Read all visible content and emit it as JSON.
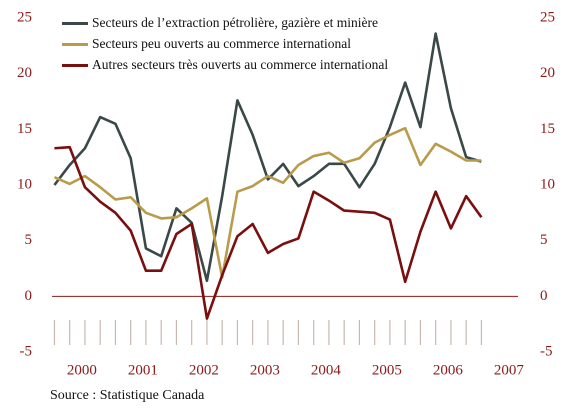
{
  "chart_data": {
    "type": "line",
    "x": [
      2000,
      2000.25,
      2000.5,
      2000.75,
      2001,
      2001.25,
      2001.5,
      2001.75,
      2002,
      2002.25,
      2002.5,
      2002.75,
      2003,
      2003.25,
      2003.5,
      2003.75,
      2004,
      2004.25,
      2004.5,
      2004.75,
      2005,
      2005.25,
      2005.5,
      2005.75,
      2006,
      2006.25,
      2006.5,
      2006.75,
      2007
    ],
    "series": [
      {
        "name": "Secteurs de l’extraction pétrolière, gazière et minière",
        "color": "#3b4848",
        "values": [
          10.0,
          11.8,
          13.3,
          16.1,
          15.5,
          12.4,
          4.3,
          3.6,
          7.9,
          6.6,
          1.4,
          9.0,
          17.6,
          14.5,
          10.5,
          11.9,
          9.9,
          10.8,
          11.9,
          11.9,
          9.8,
          11.9,
          15.2,
          19.2,
          15.2,
          23.6,
          16.9,
          12.5,
          12.1
        ]
      },
      {
        "name": "Secteurs peu ouverts au commerce international",
        "color": "#b89c4c",
        "values": [
          10.7,
          10.1,
          10.8,
          9.8,
          8.7,
          8.9,
          7.5,
          7.0,
          7.1,
          7.9,
          8.8,
          1.7,
          9.4,
          9.9,
          10.8,
          10.2,
          11.8,
          12.6,
          12.9,
          12.0,
          12.4,
          13.8,
          14.5,
          15.1,
          11.8,
          13.7,
          13.0,
          12.2,
          12.2
        ]
      },
      {
        "name": "Autres secteurs très ouverts au commerce international",
        "color": "#7a0f0f",
        "values": [
          13.3,
          13.4,
          9.8,
          8.5,
          7.5,
          5.9,
          2.3,
          2.3,
          5.6,
          6.5,
          -2.0,
          1.9,
          5.4,
          6.5,
          3.9,
          4.7,
          5.2,
          9.4,
          8.6,
          7.7,
          7.6,
          7.5,
          6.9,
          1.3,
          5.8,
          9.4,
          6.1,
          9.0,
          7.1
        ]
      }
    ],
    "xlim": [
      1999.96,
      2007.6
    ],
    "xticks": [
      {
        "value": 2000.45,
        "label": "2000"
      },
      {
        "value": 2001.45,
        "label": "2001"
      },
      {
        "value": 2002.45,
        "label": "2002"
      },
      {
        "value": 2003.45,
        "label": "2003"
      },
      {
        "value": 2004.45,
        "label": "2004"
      },
      {
        "value": 2005.45,
        "label": "2005"
      },
      {
        "value": 2006.45,
        "label": "2006"
      },
      {
        "value": 2007.45,
        "label": "2007"
      }
    ],
    "ylim": [
      -5,
      25
    ],
    "yticks": [
      -5,
      0,
      5,
      10,
      15,
      20,
      25
    ],
    "legend": "upper left",
    "source": "Source : Statistique Canada"
  }
}
